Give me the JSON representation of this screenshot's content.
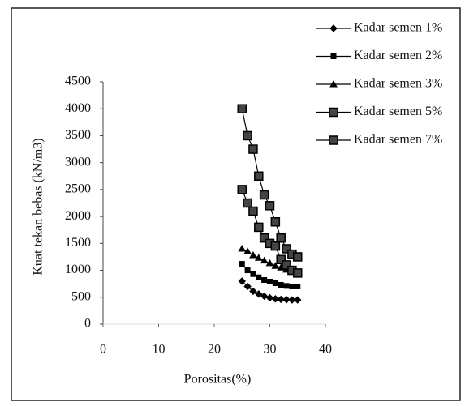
{
  "chart_data": {
    "type": "line",
    "x": [
      25,
      26,
      27,
      28,
      29,
      30,
      31,
      32,
      33,
      34,
      35
    ],
    "series": [
      {
        "name": "Kadar semen 1%",
        "color": "#000000",
        "marker": "diamond",
        "values": [
          800,
          700,
          610,
          560,
          520,
          490,
          470,
          460,
          455,
          450,
          450
        ]
      },
      {
        "name": "Kadar semen 2%",
        "color": "#000000",
        "marker": "square",
        "values": [
          1120,
          1000,
          930,
          870,
          820,
          790,
          760,
          730,
          710,
          700,
          700
        ]
      },
      {
        "name": "Kadar semen 3%",
        "color": "#000000",
        "marker": "triangle",
        "values": [
          1400,
          1350,
          1280,
          1230,
          1180,
          1130,
          1080,
          1050,
          1010,
          980,
          960
        ]
      },
      {
        "name": "Kadar semen 5%",
        "color": "#000000",
        "marker": "big-square",
        "values": [
          2500,
          2250,
          2100,
          1800,
          1600,
          1500,
          1450,
          1200,
          1100,
          1000,
          950
        ]
      },
      {
        "name": "Kadar semen 7%",
        "color": "#000000",
        "marker": "big-square",
        "values": [
          4000,
          3500,
          3250,
          2750,
          2400,
          2200,
          1900,
          1600,
          1400,
          1300,
          1250
        ]
      }
    ],
    "x_label": "Porositas(%)",
    "y_label": "Kuat tekan bebas (kN/m3)",
    "xlim": [
      0,
      40
    ],
    "xticks": [
      0,
      10,
      20,
      30,
      40
    ],
    "ylim": [
      0,
      4500
    ],
    "yticks": [
      0,
      500,
      1000,
      1500,
      2000,
      2500,
      3000,
      3500,
      4000,
      4500
    ],
    "legend": "top-right"
  }
}
